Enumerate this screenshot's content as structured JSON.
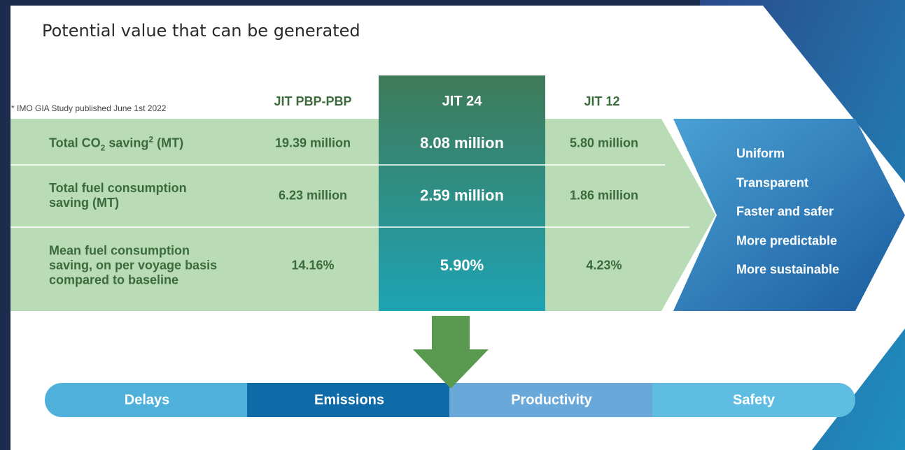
{
  "header": {
    "title": "Potential value that can be generated",
    "footnote": "* IMO GIA Study published June 1st 2022"
  },
  "table": {
    "columns": [
      "JIT PBP-PBP",
      "JIT 24",
      "JIT 12"
    ],
    "rows": [
      {
        "label": [
          "Total CO",
          "2",
          " saving",
          "2",
          " (MT)"
        ],
        "values": [
          "19.39 million",
          "8.08 million",
          "5.80 million"
        ]
      },
      {
        "label": [
          "Total fuel consumption",
          "saving (MT)"
        ],
        "values": [
          "6.23 million",
          "2.59 million",
          "1.86 million"
        ]
      },
      {
        "label": [
          "Mean fuel consumption",
          "saving, on per voyage basis",
          "compared to baseline"
        ],
        "values": [
          "14.16%",
          "5.90%",
          "4.23%"
        ]
      }
    ]
  },
  "benefits": [
    "Uniform",
    "Transparent",
    "Faster and safer",
    "More predictable",
    "More sustainable"
  ],
  "impact_bar": [
    "Delays",
    "Emissions",
    "Productivity",
    "Safety"
  ]
}
